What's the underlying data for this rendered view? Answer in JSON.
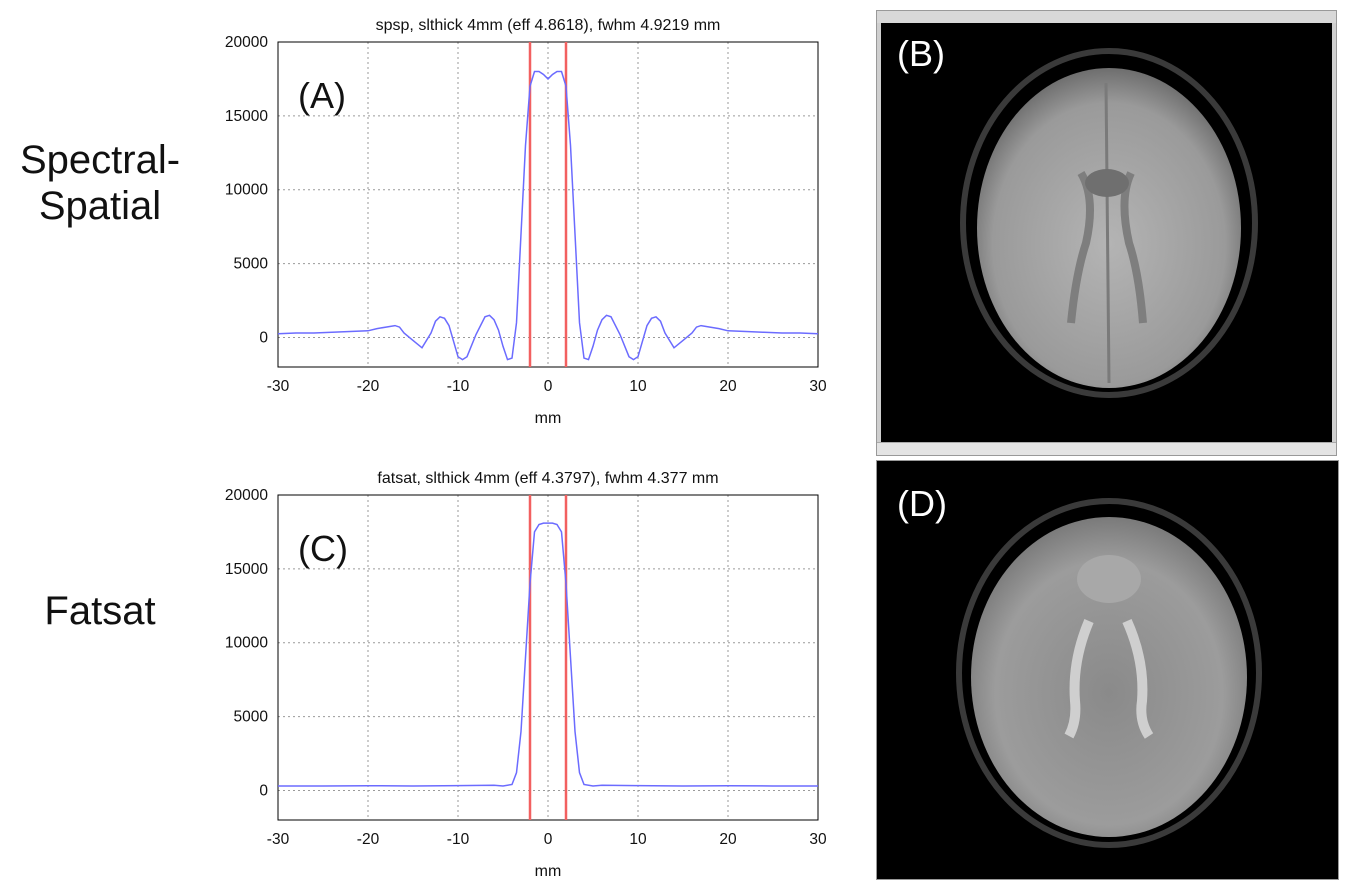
{
  "row_labels": {
    "top": [
      "Spectral-",
      "Spatial"
    ],
    "bottom": "Fatsat"
  },
  "chart_data": [
    {
      "type": "line",
      "panel_label": "(A)",
      "title": "spsp, slthick 4mm (eff 4.8618), fwhm 4.9219 mm",
      "xlabel": "mm",
      "ylabel": "",
      "xlim": [
        -30,
        30
      ],
      "ylim": [
        -2000,
        20000
      ],
      "xticks": [
        -30,
        -20,
        -10,
        0,
        10,
        20,
        30
      ],
      "yticks": [
        0,
        5000,
        10000,
        15000,
        20000
      ],
      "grid": true,
      "slice_markers_mm": [
        -2,
        2
      ],
      "series": [
        {
          "color": "#6b6bff",
          "x": [
            -30,
            -28,
            -26,
            -24,
            -22,
            -20,
            -19,
            -18,
            -17,
            -16.5,
            -16,
            -15,
            -14,
            -13,
            -12.5,
            -12,
            -11.5,
            -11,
            -10,
            -9.5,
            -9,
            -8,
            -7,
            -6.5,
            -6,
            -5.5,
            -5,
            -4.5,
            -4,
            -3.5,
            -3,
            -2.5,
            -2,
            -1.5,
            -1,
            -0.5,
            0,
            0.5,
            1,
            1.5,
            2,
            2.5,
            3,
            3.5,
            4,
            4.5,
            5,
            5.5,
            6,
            6.5,
            7,
            8,
            9,
            9.5,
            10,
            11,
            11.5,
            12,
            12.5,
            13,
            14,
            15,
            16,
            16.5,
            17,
            18,
            19,
            20,
            22,
            24,
            26,
            28,
            30
          ],
          "y": [
            250,
            300,
            300,
            350,
            400,
            450,
            600,
            700,
            800,
            700,
            300,
            -200,
            -700,
            300,
            1100,
            1400,
            1300,
            800,
            -1300,
            -1500,
            -1300,
            200,
            1400,
            1500,
            1200,
            500,
            -600,
            -1500,
            -1400,
            1000,
            7000,
            13000,
            17000,
            18000,
            18000,
            17800,
            17500,
            17800,
            18000,
            18000,
            17000,
            13000,
            7000,
            1000,
            -1400,
            -1500,
            -600,
            500,
            1200,
            1500,
            1400,
            200,
            -1300,
            -1500,
            -1300,
            800,
            1300,
            1400,
            1100,
            300,
            -700,
            -200,
            300,
            700,
            800,
            700,
            600,
            450,
            400,
            350,
            300,
            300,
            250
          ]
        }
      ]
    },
    {
      "type": "line",
      "panel_label": "(C)",
      "title": "fatsat, slthick 4mm (eff 4.3797), fwhm 4.377 mm",
      "xlabel": "mm",
      "ylabel": "",
      "xlim": [
        -30,
        30
      ],
      "ylim": [
        -2000,
        20000
      ],
      "xticks": [
        -30,
        -20,
        -10,
        0,
        10,
        20,
        30
      ],
      "yticks": [
        0,
        5000,
        10000,
        15000,
        20000
      ],
      "grid": true,
      "slice_markers_mm": [
        -2,
        2
      ],
      "series": [
        {
          "color": "#6b6bff",
          "x": [
            -30,
            -25,
            -20,
            -15,
            -10,
            -6,
            -5,
            -4,
            -3.5,
            -3,
            -2.5,
            -2,
            -1.5,
            -1,
            -0.5,
            0,
            0.5,
            1,
            1.5,
            2,
            2.5,
            3,
            3.5,
            4,
            5,
            6,
            10,
            15,
            20,
            25,
            30
          ],
          "y": [
            300,
            300,
            320,
            300,
            330,
            350,
            300,
            400,
            1200,
            4000,
            9000,
            14000,
            17500,
            18000,
            18100,
            18100,
            18100,
            18000,
            17500,
            14000,
            9000,
            4000,
            1200,
            400,
            300,
            350,
            330,
            300,
            320,
            300,
            300
          ]
        }
      ]
    }
  ],
  "images": [
    {
      "panel_label": "(B)"
    },
    {
      "panel_label": "(D)"
    }
  ]
}
